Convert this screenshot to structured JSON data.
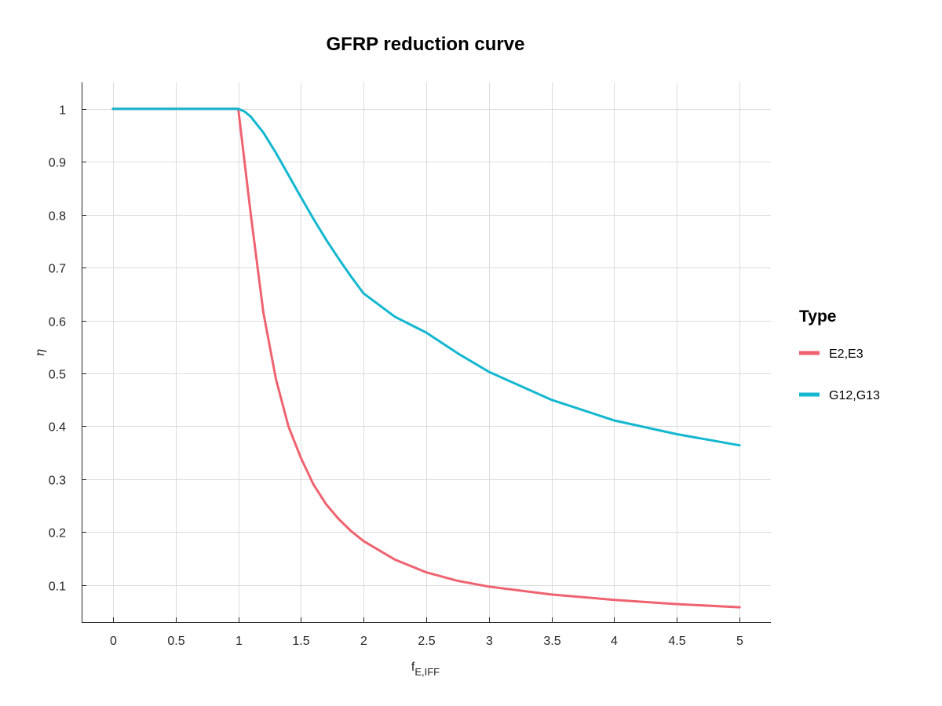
{
  "chart_data": {
    "type": "line",
    "title": "GFRP reduction curve",
    "xlabel": "f",
    "xlabel_sub": "E,IFF",
    "ylabel": "η",
    "xlim": [
      -0.25,
      5.25
    ],
    "ylim": [
      0.03,
      1.05
    ],
    "xticks": [
      0,
      0.5,
      1,
      1.5,
      2,
      2.5,
      3,
      3.5,
      4,
      4.5,
      5
    ],
    "yticks": [
      0.1,
      0.2,
      0.3,
      0.4,
      0.5,
      0.6,
      0.7,
      0.8,
      0.9,
      1
    ],
    "grid": true,
    "legend": {
      "title": "Type",
      "placement": "right"
    },
    "series": [
      {
        "name": "E2,E3",
        "color": "#ef6370",
        "x": [
          0,
          1,
          1.1,
          1.2,
          1.3,
          1.4,
          1.5,
          1.6,
          1.7,
          1.8,
          1.9,
          2.0,
          2.25,
          2.5,
          2.75,
          3.0,
          3.5,
          4.0,
          4.5,
          5.0
        ],
        "y": [
          1,
          1,
          0.8,
          0.615,
          0.49,
          0.4,
          0.34,
          0.29,
          0.253,
          0.225,
          0.202,
          0.183,
          0.148,
          0.124,
          0.108,
          0.097,
          0.082,
          0.072,
          0.064,
          0.058
        ]
      },
      {
        "name": "G12,G13",
        "color": "#13b7d0",
        "x": [
          0,
          1,
          1.05,
          1.1,
          1.2,
          1.3,
          1.4,
          1.5,
          1.6,
          1.7,
          1.8,
          1.9,
          2.0,
          2.25,
          2.5,
          2.75,
          3.0,
          3.5,
          4.0,
          4.5,
          5.0
        ],
        "y": [
          1,
          1,
          0.995,
          0.985,
          0.955,
          0.917,
          0.875,
          0.833,
          0.792,
          0.753,
          0.717,
          0.683,
          0.651,
          0.607,
          0.577,
          0.538,
          0.503,
          0.45,
          0.411,
          0.385,
          0.364
        ]
      }
    ]
  }
}
